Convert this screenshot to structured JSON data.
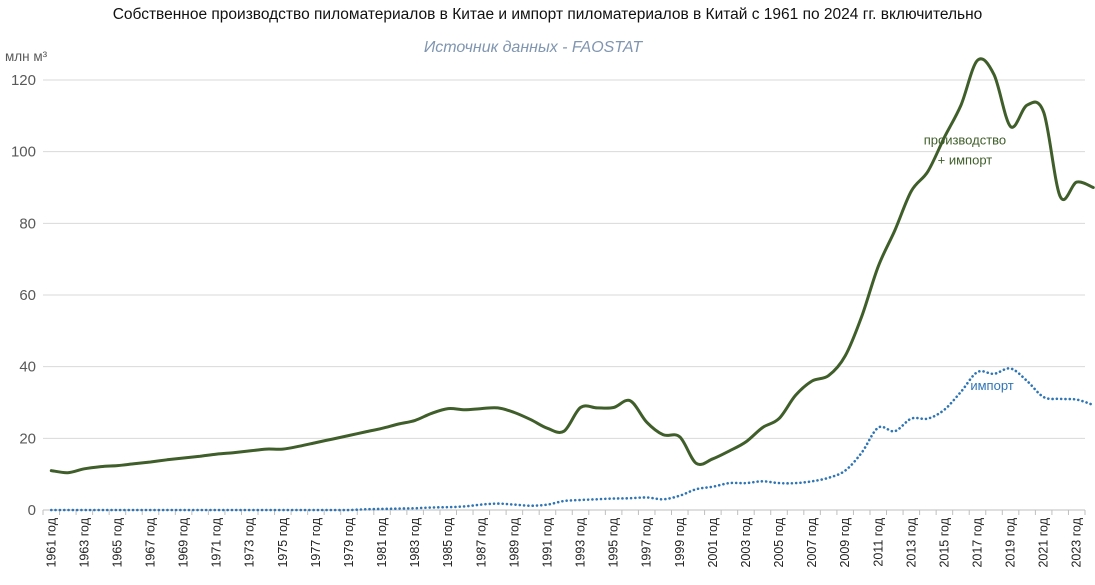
{
  "chart_data": {
    "type": "line",
    "title": "Собственное производство пиломатериалов в Китае и импорт пиломатериалов в Китай с 1961 по 2024 гг. включительно",
    "subtitle": "Источник данных - FAOSTAT",
    "ylabel": "млн м³",
    "ylim": [
      0,
      120
    ],
    "yticks": [
      0,
      20,
      40,
      60,
      80,
      100,
      120
    ],
    "x": [
      1961,
      1962,
      1963,
      1964,
      1965,
      1966,
      1967,
      1968,
      1969,
      1970,
      1971,
      1972,
      1973,
      1974,
      1975,
      1976,
      1977,
      1978,
      1979,
      1980,
      1981,
      1982,
      1983,
      1984,
      1985,
      1986,
      1987,
      1988,
      1989,
      1990,
      1991,
      1992,
      1993,
      1994,
      1995,
      1996,
      1997,
      1998,
      1999,
      2000,
      2001,
      2002,
      2003,
      2004,
      2005,
      2006,
      2007,
      2008,
      2009,
      2010,
      2011,
      2012,
      2013,
      2014,
      2015,
      2016,
      2017,
      2018,
      2019,
      2020,
      2021,
      2022,
      2023,
      2024
    ],
    "xtick_labels": [
      "1961 год",
      "1963 год",
      "1965 год",
      "1967 год",
      "1969 год",
      "1971 год",
      "1973 год",
      "1975 год",
      "1977 год",
      "1979 год",
      "1981 год",
      "1983 год",
      "1985 год",
      "1987 год",
      "1989 год",
      "1991 год",
      "1993 год",
      "1995 год",
      "1997 год",
      "1999 год",
      "2001 год",
      "2003 год",
      "2005 год",
      "2007 год",
      "2009 год",
      "2011 год",
      "2013 год",
      "2015 год",
      "2017 год",
      "2019 год",
      "2021 год",
      "2023 год"
    ],
    "series": [
      {
        "name": "производство + импорт",
        "label_lines": [
          "производство",
          "+ импорт"
        ],
        "color": "#3f5e2a",
        "style": "solid",
        "values": [
          11,
          10.4,
          11.5,
          12.1,
          12.4,
          12.9,
          13.4,
          14,
          14.5,
          15,
          15.6,
          16,
          16.5,
          17,
          17,
          17.8,
          18.8,
          19.8,
          20.8,
          21.8,
          22.8,
          24,
          25,
          27,
          28.3,
          28,
          28.3,
          28.5,
          27.2,
          25.2,
          22.8,
          22,
          28.6,
          28.5,
          28.6,
          30.5,
          24.5,
          21,
          20.4,
          13,
          14.3,
          16.5,
          19,
          23,
          25.5,
          32,
          36,
          37.5,
          43,
          54,
          68,
          78,
          89,
          94.5,
          104,
          113,
          125.5,
          121.5,
          107,
          113,
          111,
          87.5,
          91.5,
          90
        ]
      },
      {
        "name": "импорт",
        "label_lines": [
          "импорт"
        ],
        "color": "#2e75b6",
        "style": "dotted",
        "values": [
          0,
          0,
          0,
          0,
          0,
          0,
          0,
          0,
          0,
          0,
          0,
          0,
          0,
          0,
          0,
          0,
          0,
          0,
          0,
          0.2,
          0.3,
          0.4,
          0.5,
          0.7,
          0.8,
          1,
          1.5,
          1.8,
          1.5,
          1.2,
          1.5,
          2.5,
          2.8,
          3,
          3.2,
          3.3,
          3.5,
          3,
          4,
          5.8,
          6.5,
          7.5,
          7.5,
          8,
          7.5,
          7.5,
          8,
          9,
          11,
          16,
          23,
          22,
          25.5,
          25.5,
          28,
          33,
          38.5,
          38,
          39.5,
          36,
          31.5,
          31,
          30.8,
          29.3
        ]
      }
    ],
    "grid": true,
    "legend": "inline labels"
  }
}
